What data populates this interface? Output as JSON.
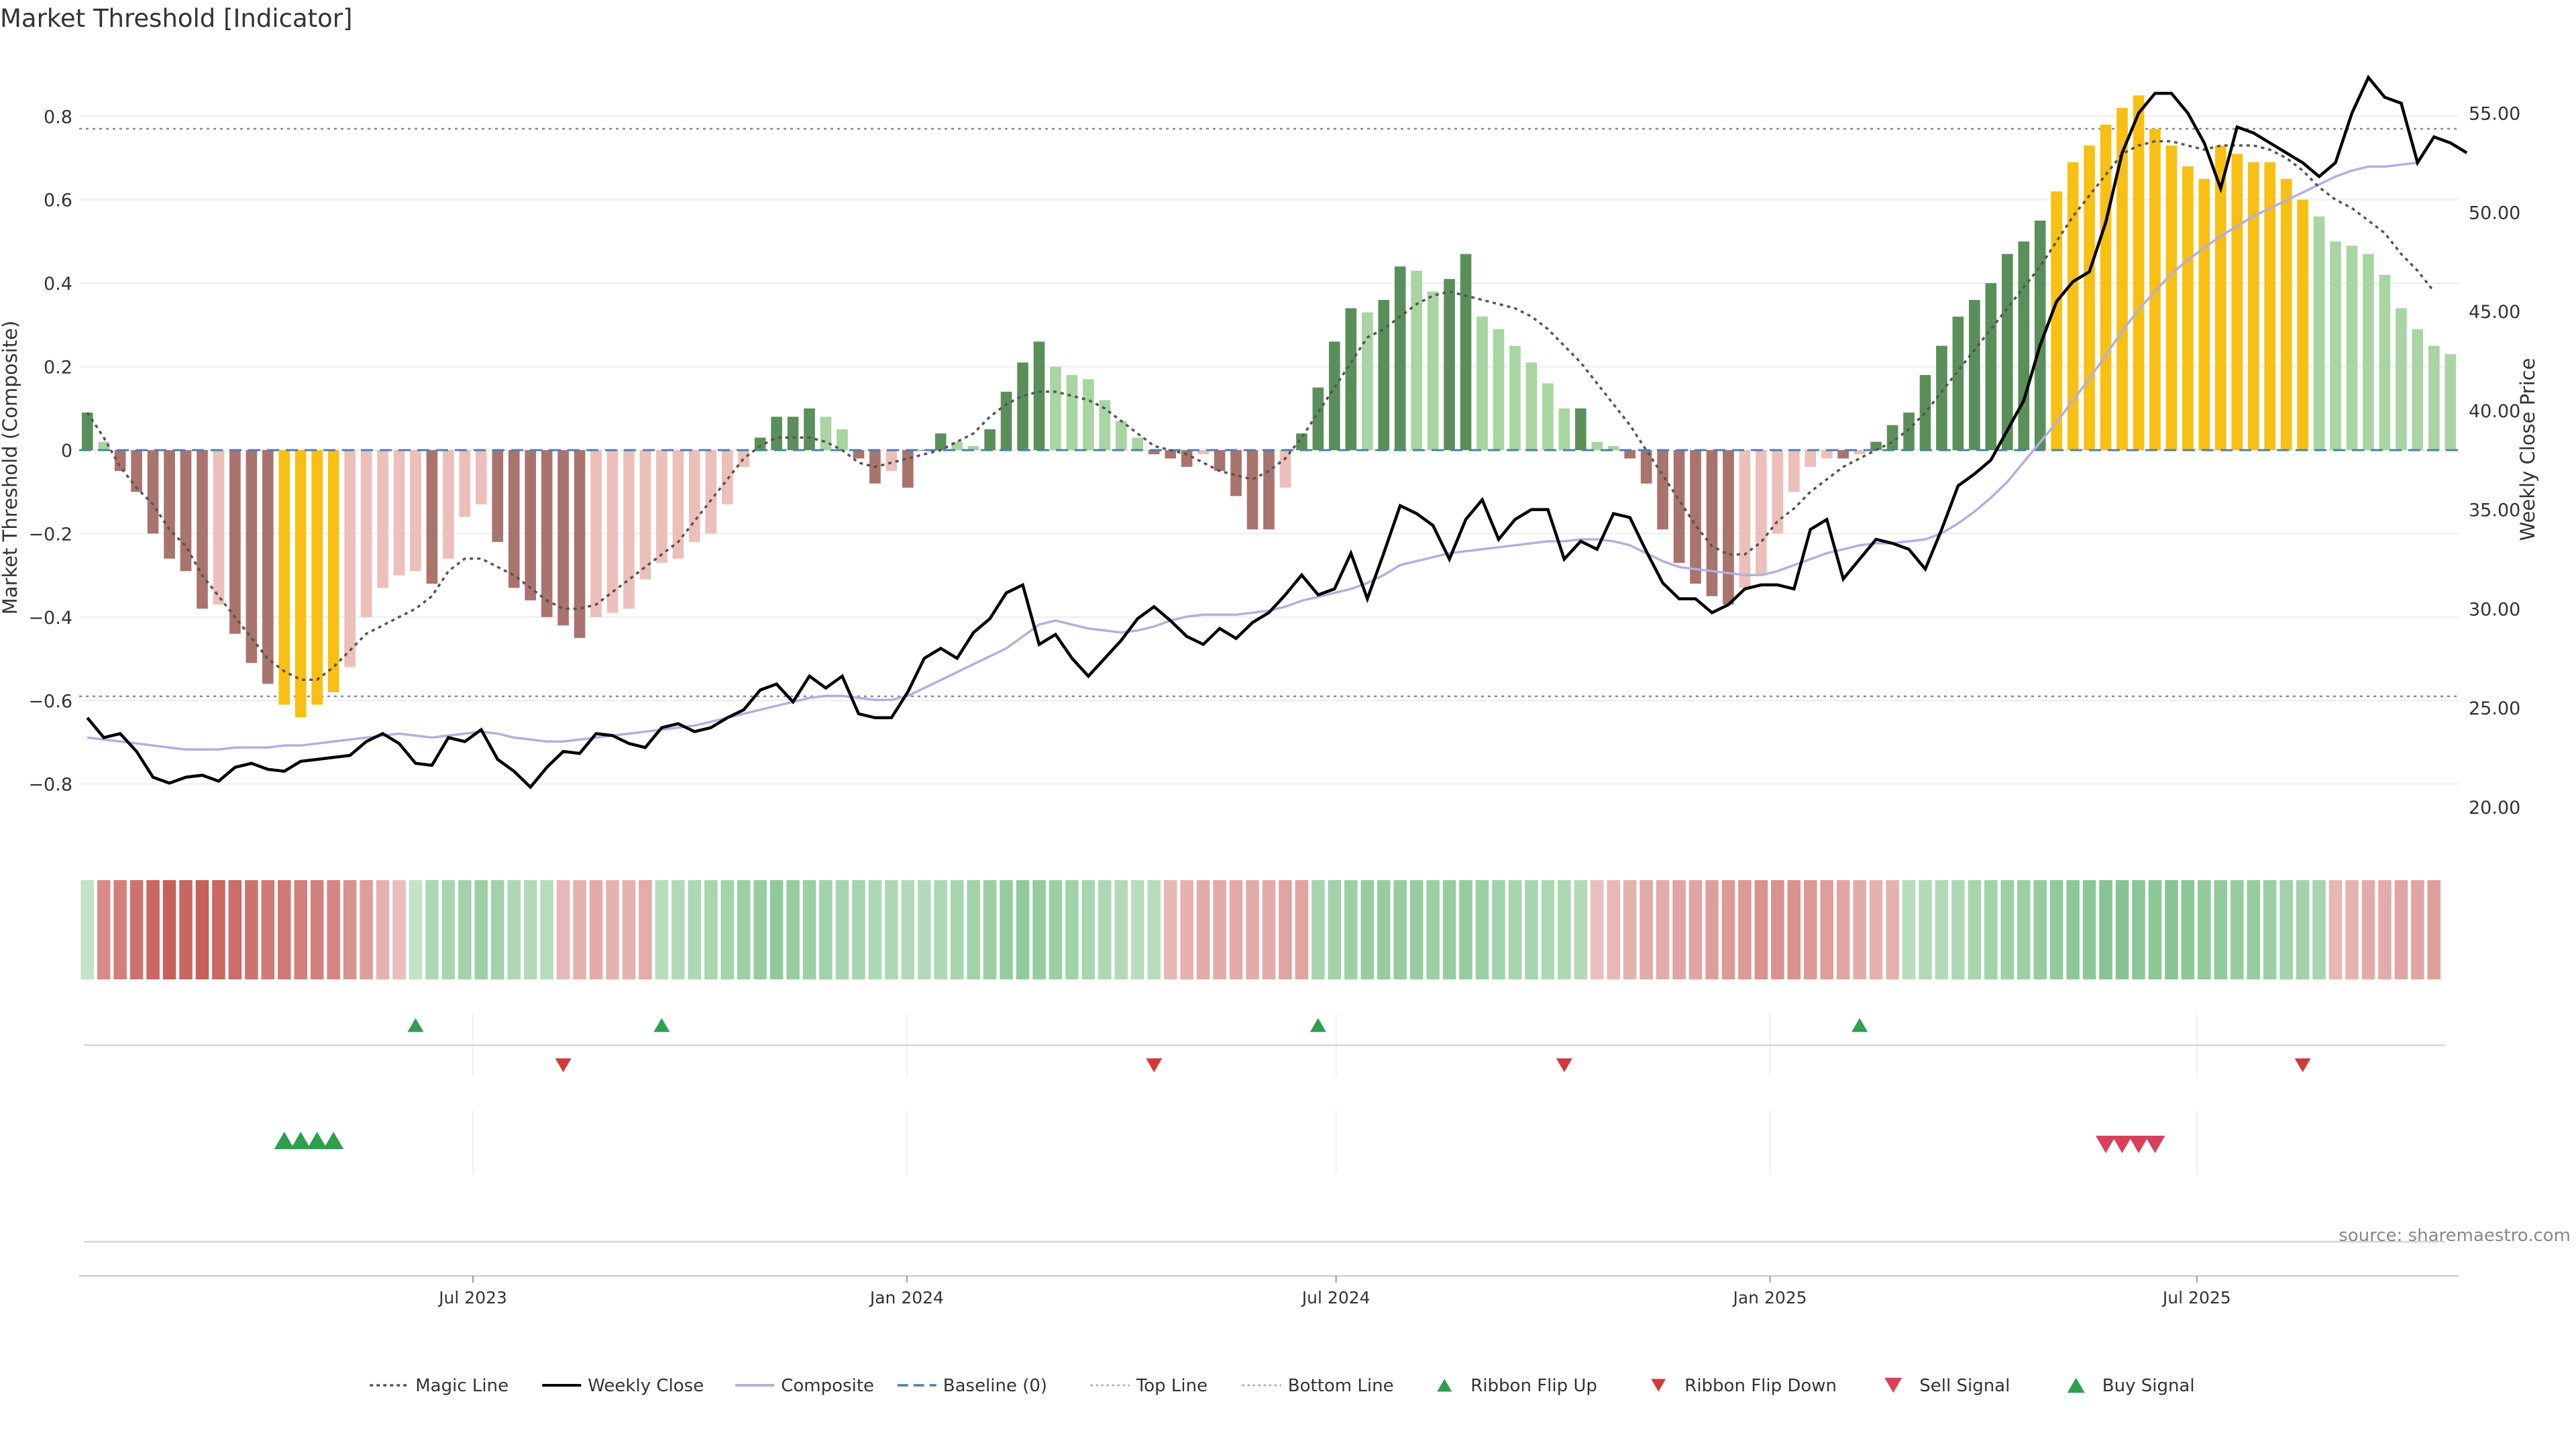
{
  "chart_data": {
    "type": "bar",
    "title": "Market Threshold [Indicator]",
    "ylabel": "Market Threshold (Composite)",
    "y2label": "Weekly Close Price",
    "ylim": [
      -0.95,
      0.95
    ],
    "y2lim": [
      18,
      58
    ],
    "x_start": "2023-01-15",
    "x_end": "2025-10-20",
    "y_ticks": [
      "-0.8",
      "-0.6",
      "-0.4",
      "-0.2",
      "0",
      "0.2",
      "0.4",
      "0.6",
      "0.8"
    ],
    "y2_ticks": [
      "20.00",
      "25.00",
      "30.00",
      "35.00",
      "40.00",
      "45.00",
      "50.00",
      "55.00"
    ],
    "x_ticks": [
      {
        "date": "2023-07-01",
        "label": "Jul 2023"
      },
      {
        "date": "2024-01-01",
        "label": "Jan 2024"
      },
      {
        "date": "2024-07-01",
        "label": "Jul 2024"
      },
      {
        "date": "2025-01-01",
        "label": "Jan 2025"
      },
      {
        "date": "2025-07-01",
        "label": "Jul 2025"
      }
    ],
    "top_line": 0.77,
    "bottom_line": -0.59,
    "baseline": 0,
    "composite": [
      0.09,
      0.02,
      -0.05,
      -0.1,
      -0.2,
      -0.26,
      -0.29,
      -0.38,
      -0.37,
      -0.44,
      -0.51,
      -0.56,
      -0.61,
      -0.64,
      -0.61,
      -0.58,
      -0.52,
      -0.4,
      -0.33,
      -0.3,
      -0.29,
      -0.32,
      -0.26,
      -0.16,
      -0.13,
      -0.22,
      -0.33,
      -0.36,
      -0.4,
      -0.42,
      -0.45,
      -0.4,
      -0.39,
      -0.38,
      -0.31,
      -0.27,
      -0.26,
      -0.22,
      -0.2,
      -0.13,
      -0.04,
      0.03,
      0.08,
      0.08,
      0.1,
      0.08,
      0.05,
      -0.02,
      -0.08,
      -0.05,
      -0.09,
      0.0,
      0.04,
      0.02,
      0.01,
      0.05,
      0.14,
      0.21,
      0.26,
      0.2,
      0.18,
      0.17,
      0.12,
      0.07,
      0.03,
      -0.01,
      -0.02,
      -0.04,
      -0.01,
      -0.05,
      -0.11,
      -0.19,
      -0.19,
      -0.09,
      0.04,
      0.15,
      0.26,
      0.34,
      0.33,
      0.36,
      0.44,
      0.43,
      0.38,
      0.41,
      0.47,
      0.32,
      0.29,
      0.25,
      0.21,
      0.16,
      0.1,
      0.1,
      0.02,
      0.01,
      -0.02,
      -0.08,
      -0.19,
      -0.27,
      -0.32,
      -0.35,
      -0.37,
      -0.33,
      -0.3,
      -0.2,
      -0.1,
      -0.04,
      -0.02,
      -0.02,
      -0.01,
      0.02,
      0.06,
      0.09,
      0.18,
      0.25,
      0.32,
      0.36,
      0.4,
      0.47,
      0.5,
      0.55,
      0.62,
      0.69,
      0.73,
      0.78,
      0.82,
      0.85,
      0.77,
      0.73,
      0.68,
      0.65,
      0.73,
      0.71,
      0.69,
      0.69,
      0.65,
      0.6,
      0.56,
      0.5,
      0.49,
      0.47,
      0.42,
      0.34,
      0.29,
      0.25,
      0.23
    ],
    "magic_line": [
      0.09,
      0.03,
      -0.04,
      -0.09,
      -0.13,
      -0.19,
      -0.23,
      -0.3,
      -0.35,
      -0.4,
      -0.45,
      -0.5,
      -0.53,
      -0.55,
      -0.55,
      -0.52,
      -0.48,
      -0.44,
      -0.42,
      -0.4,
      -0.38,
      -0.35,
      -0.29,
      -0.26,
      -0.26,
      -0.28,
      -0.3,
      -0.33,
      -0.36,
      -0.38,
      -0.38,
      -0.37,
      -0.34,
      -0.31,
      -0.28,
      -0.25,
      -0.22,
      -0.17,
      -0.12,
      -0.07,
      -0.02,
      0.01,
      0.03,
      0.03,
      0.03,
      0.02,
      0.0,
      -0.03,
      -0.04,
      -0.03,
      -0.02,
      -0.01,
      0.0,
      0.02,
      0.04,
      0.08,
      0.11,
      0.13,
      0.14,
      0.14,
      0.13,
      0.12,
      0.1,
      0.07,
      0.04,
      0.01,
      0.0,
      -0.01,
      -0.03,
      -0.05,
      -0.06,
      -0.07,
      -0.05,
      -0.02,
      0.03,
      0.09,
      0.15,
      0.21,
      0.27,
      0.29,
      0.32,
      0.35,
      0.37,
      0.38,
      0.37,
      0.36,
      0.35,
      0.34,
      0.32,
      0.29,
      0.25,
      0.21,
      0.16,
      0.11,
      0.06,
      0.0,
      -0.06,
      -0.12,
      -0.18,
      -0.23,
      -0.25,
      -0.25,
      -0.22,
      -0.17,
      -0.14,
      -0.1,
      -0.07,
      -0.04,
      -0.02,
      0.0,
      0.02,
      0.05,
      0.09,
      0.14,
      0.19,
      0.24,
      0.29,
      0.34,
      0.39,
      0.44,
      0.5,
      0.56,
      0.61,
      0.66,
      0.71,
      0.73,
      0.74,
      0.74,
      0.73,
      0.72,
      0.73,
      0.73,
      0.73,
      0.72,
      0.7,
      0.67,
      0.63,
      0.6,
      0.58,
      0.55,
      0.52,
      0.47,
      0.43,
      0.38
    ],
    "composite_line": [
      23.5,
      23.4,
      23.3,
      23.2,
      23.1,
      23.0,
      22.9,
      22.9,
      22.9,
      23.0,
      23.0,
      23.0,
      23.1,
      23.1,
      23.2,
      23.3,
      23.4,
      23.5,
      23.6,
      23.7,
      23.6,
      23.5,
      23.6,
      23.7,
      23.8,
      23.7,
      23.5,
      23.4,
      23.3,
      23.3,
      23.4,
      23.5,
      23.6,
      23.7,
      23.8,
      23.9,
      24.0,
      24.1,
      24.3,
      24.5,
      24.7,
      24.9,
      25.1,
      25.3,
      25.5,
      25.6,
      25.6,
      25.5,
      25.4,
      25.4,
      25.6,
      26.0,
      26.4,
      26.8,
      27.2,
      27.6,
      28.0,
      28.6,
      29.2,
      29.4,
      29.2,
      29.0,
      28.9,
      28.8,
      28.9,
      29.1,
      29.4,
      29.6,
      29.7,
      29.7,
      29.7,
      29.8,
      29.9,
      30.1,
      30.4,
      30.6,
      30.8,
      31.0,
      31.3,
      31.7,
      32.2,
      32.4,
      32.6,
      32.8,
      32.9,
      33.0,
      33.1,
      33.2,
      33.3,
      33.4,
      33.4,
      33.5,
      33.5,
      33.4,
      33.2,
      32.8,
      32.4,
      32.1,
      32.0,
      31.9,
      31.8,
      31.7,
      31.7,
      31.9,
      32.2,
      32.5,
      32.8,
      33.0,
      33.2,
      33.3,
      33.3,
      33.4,
      33.5,
      33.8,
      34.3,
      34.9,
      35.6,
      36.4,
      37.4,
      38.4,
      39.4,
      40.5,
      41.6,
      42.8,
      44.0,
      45.1,
      46.0,
      46.9,
      47.6,
      48.2,
      48.8,
      49.3,
      49.8,
      50.2,
      50.6,
      51.0,
      51.4,
      51.8,
      52.1,
      52.3,
      52.3,
      52.4,
      52.5
    ],
    "weekly_close": [
      24.5,
      23.5,
      23.7,
      22.8,
      21.5,
      21.2,
      21.5,
      21.6,
      21.3,
      22.0,
      22.2,
      21.9,
      21.8,
      22.3,
      22.4,
      22.5,
      22.6,
      23.3,
      23.7,
      23.2,
      22.2,
      22.1,
      23.5,
      23.3,
      23.9,
      22.4,
      21.8,
      21.0,
      22.0,
      22.8,
      22.7,
      23.7,
      23.6,
      23.2,
      23.0,
      24.0,
      24.2,
      23.8,
      24.0,
      24.5,
      24.9,
      25.9,
      26.2,
      25.3,
      26.6,
      26.0,
      26.6,
      24.7,
      24.5,
      24.5,
      25.8,
      27.5,
      28.0,
      27.5,
      28.8,
      29.5,
      30.8,
      31.2,
      28.2,
      28.7,
      27.5,
      26.6,
      27.5,
      28.4,
      29.5,
      30.1,
      29.4,
      28.6,
      28.2,
      29.0,
      28.5,
      29.3,
      29.8,
      30.7,
      31.7,
      30.7,
      31.0,
      32.8,
      30.5,
      32.8,
      35.2,
      34.8,
      34.2,
      32.5,
      34.5,
      35.5,
      33.5,
      34.5,
      35.0,
      35.0,
      32.5,
      33.4,
      33.0,
      34.8,
      34.6,
      32.9,
      31.3,
      30.5,
      30.5,
      29.8,
      30.2,
      31.0,
      31.2,
      31.2,
      31.0,
      34.0,
      34.5,
      31.5,
      32.5,
      33.5,
      33.3,
      33.0,
      32.0,
      34.0,
      36.2,
      36.8,
      37.5,
      39.0,
      40.5,
      43.3,
      45.5,
      46.5,
      47.0,
      49.5,
      53.0,
      55.0,
      56.0,
      56.0,
      55.0,
      53.5,
      51.2,
      54.3,
      54.0,
      53.5,
      53.0,
      52.5,
      51.8,
      52.5,
      55.0,
      56.8,
      55.8,
      55.5,
      52.5,
      53.8,
      53.5,
      53.0
    ],
    "ribbon": [
      0.2,
      -0.6,
      -0.7,
      -0.8,
      -0.9,
      -0.95,
      -0.9,
      -0.95,
      -0.9,
      -0.85,
      -0.8,
      -0.75,
      -0.75,
      -0.7,
      -0.7,
      -0.65,
      -0.55,
      -0.45,
      -0.3,
      -0.2,
      0.2,
      0.4,
      0.45,
      0.5,
      0.55,
      0.5,
      0.4,
      0.35,
      0.3,
      -0.25,
      -0.3,
      -0.35,
      -0.3,
      -0.3,
      -0.35,
      0.3,
      0.35,
      0.4,
      0.45,
      0.5,
      0.55,
      0.6,
      0.65,
      0.6,
      0.55,
      0.5,
      0.45,
      0.45,
      0.4,
      0.4,
      0.35,
      0.35,
      0.4,
      0.45,
      0.5,
      0.55,
      0.6,
      0.65,
      0.6,
      0.55,
      0.5,
      0.45,
      0.4,
      0.35,
      0.3,
      0.3,
      -0.25,
      -0.3,
      -0.35,
      -0.35,
      -0.35,
      -0.35,
      -0.35,
      -0.4,
      -0.4,
      0.45,
      0.5,
      0.55,
      0.6,
      0.6,
      0.6,
      0.6,
      0.55,
      0.6,
      0.6,
      0.55,
      0.5,
      0.45,
      0.45,
      0.4,
      0.4,
      0.35,
      -0.2,
      -0.25,
      -0.3,
      -0.35,
      -0.35,
      -0.4,
      -0.4,
      -0.45,
      -0.5,
      -0.5,
      -0.55,
      -0.55,
      -0.55,
      -0.5,
      -0.45,
      -0.4,
      -0.35,
      -0.3,
      -0.3,
      0.3,
      0.35,
      0.35,
      0.4,
      0.45,
      0.5,
      0.55,
      0.55,
      0.6,
      0.65,
      0.7,
      0.7,
      0.75,
      0.75,
      0.7,
      0.7,
      0.75,
      0.7,
      0.65,
      0.65,
      0.6,
      0.6,
      0.55,
      0.5,
      0.5,
      0.45,
      -0.25,
      -0.3,
      -0.35,
      -0.35,
      -0.4,
      -0.4,
      -0.45
    ],
    "ribbon_flip_up": [
      20,
      35,
      75,
      108
    ],
    "ribbon_flip_down": [
      29,
      65,
      90,
      135
    ],
    "buy_signal": [
      12,
      13,
      14,
      15
    ],
    "sell_signal": [
      123,
      124,
      125,
      126
    ],
    "legend": [
      {
        "name": "Magic Line",
        "kind": "dotted",
        "color": "#555555"
      },
      {
        "name": "Weekly Close",
        "kind": "line",
        "color": "#000000"
      },
      {
        "name": "Composite",
        "kind": "line",
        "color": "#b4aee0"
      },
      {
        "name": "Baseline (0)",
        "kind": "dashed",
        "color": "#4a7fb5"
      },
      {
        "name": "Top Line",
        "kind": "dotted-light",
        "color": "#999999"
      },
      {
        "name": "Bottom Line",
        "kind": "dotted-light",
        "color": "#999999"
      },
      {
        "name": "Ribbon Flip Up",
        "kind": "tri-up",
        "color": "#2e9e4f"
      },
      {
        "name": "Ribbon Flip Down",
        "kind": "tri-down",
        "color": "#d23a3a"
      },
      {
        "name": "Sell Signal",
        "kind": "tri-down-big",
        "color": "#d9405a"
      },
      {
        "name": "Buy Signal",
        "kind": "tri-up-big",
        "color": "#2e9e4f"
      }
    ],
    "legend_position": "bottom-center",
    "source": "source: sharemaestro.com",
    "colors": {
      "pos_dark": "#5b8f5a",
      "pos_light": "#a8d5a2",
      "neg_dark": "#a9736e",
      "neg_light": "#ecbfba",
      "extreme": "#f7c013",
      "baseline": "#4a7fb5",
      "composite": "#b4aee0",
      "weekly_close": "#000000",
      "magic": "#555555"
    }
  }
}
